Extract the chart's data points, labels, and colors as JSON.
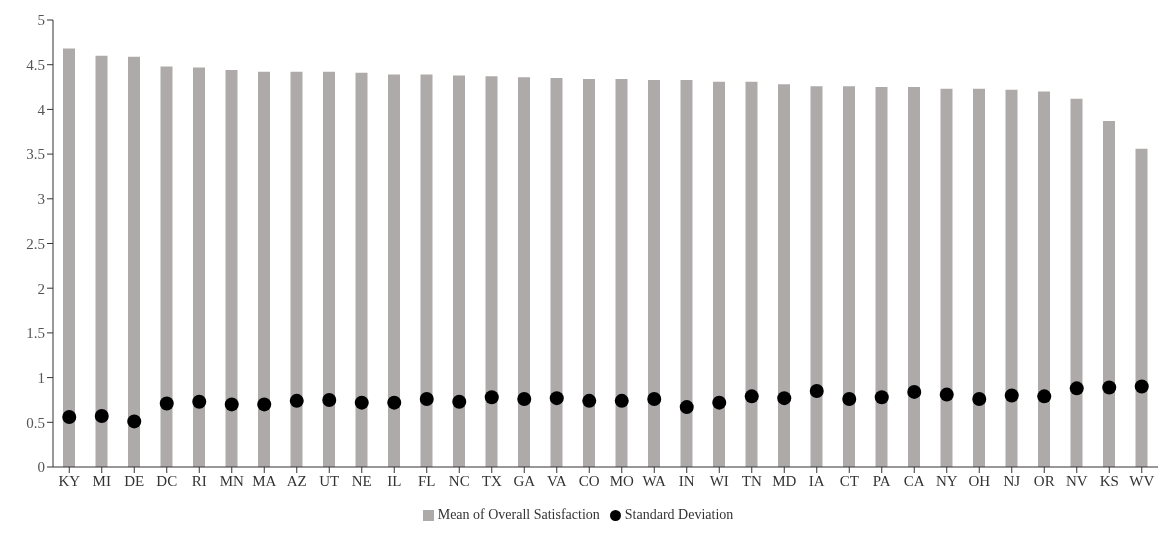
{
  "chart_data": {
    "type": "bar",
    "categories": [
      "KY",
      "MI",
      "DE",
      "DC",
      "RI",
      "MN",
      "MA",
      "AZ",
      "UT",
      "NE",
      "IL",
      "FL",
      "NC",
      "TX",
      "GA",
      "VA",
      "CO",
      "MO",
      "WA",
      "IN",
      "WI",
      "TN",
      "MD",
      "IA",
      "CT",
      "PA",
      "CA",
      "NY",
      "OH",
      "NJ",
      "OR",
      "NV",
      "KS",
      "WV"
    ],
    "series": [
      {
        "name": "Mean of Overall Satisfaction",
        "color": "#aeaaa9",
        "values": [
          4.68,
          4.6,
          4.59,
          4.48,
          4.47,
          4.44,
          4.42,
          4.42,
          4.42,
          4.41,
          4.39,
          4.39,
          4.38,
          4.37,
          4.36,
          4.35,
          4.34,
          4.34,
          4.33,
          4.33,
          4.31,
          4.31,
          4.28,
          4.26,
          4.26,
          4.25,
          4.25,
          4.23,
          4.23,
          4.22,
          4.2,
          4.12,
          3.87,
          3.56
        ]
      },
      {
        "name": "Standard Deviation",
        "type": "scatter",
        "color": "#000000",
        "values": [
          0.56,
          0.57,
          0.51,
          0.71,
          0.73,
          0.7,
          0.7,
          0.74,
          0.75,
          0.72,
          0.72,
          0.76,
          0.73,
          0.78,
          0.76,
          0.77,
          0.74,
          0.74,
          0.76,
          0.67,
          0.72,
          0.79,
          0.77,
          0.85,
          0.76,
          0.78,
          0.84,
          0.81,
          0.76,
          0.8,
          0.79,
          0.88,
          0.89,
          0.9
        ]
      }
    ],
    "ylim": [
      0,
      5
    ],
    "yticks": [
      0,
      0.5,
      1,
      1.5,
      2,
      2.5,
      3,
      3.5,
      4,
      4.5,
      5
    ],
    "grid": false,
    "legend": "bottom",
    "marker": "circle"
  }
}
